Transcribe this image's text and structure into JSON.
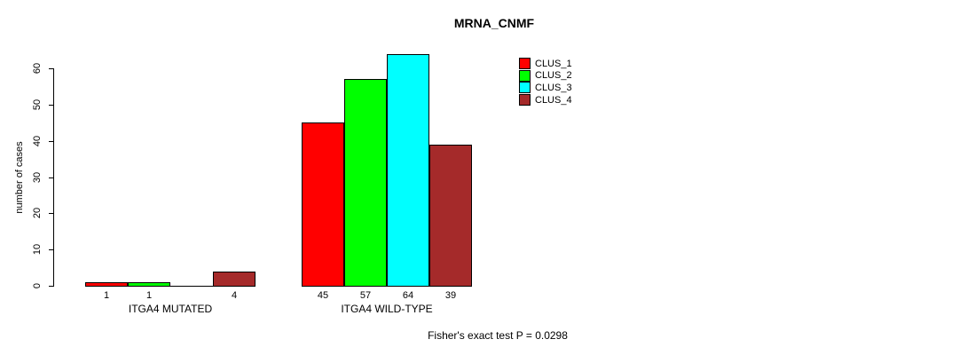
{
  "chart_data": {
    "type": "bar",
    "title": "MRNA_CNMF",
    "ylabel": "number of cases",
    "ylim": [
      0,
      60
    ],
    "yticks": [
      0,
      10,
      20,
      30,
      40,
      50,
      60
    ],
    "grid": false,
    "legend_position": "top-right",
    "categories": [
      "ITGA4 MUTATED",
      "ITGA4 WILD-TYPE"
    ],
    "series": [
      {
        "name": "CLUS_1",
        "color": "#FF0000",
        "values": [
          1,
          45
        ]
      },
      {
        "name": "CLUS_2",
        "color": "#00FF00",
        "values": [
          1,
          57
        ]
      },
      {
        "name": "CLUS_3",
        "color": "#00FFFF",
        "values": [
          0,
          64
        ]
      },
      {
        "name": "CLUS_4",
        "color": "#A52A2A",
        "values": [
          4,
          39
        ]
      }
    ],
    "bar_labels": [
      [
        "1",
        "1",
        "",
        "4"
      ],
      [
        "45",
        "57",
        "64",
        "39"
      ]
    ],
    "annotation": "Fisher's exact test P = 0.0298"
  }
}
